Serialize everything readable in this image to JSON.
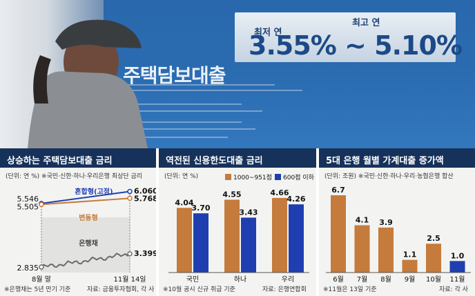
{
  "photo": {
    "rate_low_label": "최저 연",
    "rate_high_label": "최고 연",
    "rate_range_text": "3.55% ~ 5.10%",
    "billboard_title": "주택담보대출"
  },
  "colors": {
    "navy": "#16325b",
    "blue": "#1f3fb0",
    "orange": "#c57b3b",
    "gray": "#6b6b6b",
    "panel_bg": "#f3f3f1"
  },
  "panels": {
    "p1": {
      "title": "상승하는 주택담보대출 금리",
      "unit": "(단위: 연 %)  ※국민·신한·하나·우리은행 최상단 금리",
      "footnote": "※은행채는 5년 만기 기준",
      "source": "자료: 금융투자협회, 각 사"
    },
    "p2": {
      "title": "역전된 신용한도대출 금리",
      "unit": "(단위: 연 %)",
      "footnote": "※10월 공시 신규 취급 기준",
      "source": "자료: 은행연합회"
    },
    "p3": {
      "title": "5대 은행 월별 가계대출 증가액",
      "unit": "(단위: 조원)  ※국민·신한·하나·우리·농협은행 합산",
      "footnote": "※11월은 13일 기준",
      "source": "자료: 각 사"
    }
  },
  "chart_data": [
    {
      "type": "line",
      "title": "상승하는 주택담보대출 금리",
      "x": [
        "8월 말",
        "11월 14일"
      ],
      "series": [
        {
          "name": "혼합형(고정)",
          "values": [
            5.546,
            6.06
          ]
        },
        {
          "name": "변동형",
          "values": [
            5.505,
            5.768
          ]
        },
        {
          "name": "은행채",
          "values": [
            2.835,
            3.399
          ]
        }
      ],
      "value_labels": {
        "혼합형(고정)": [
          "5.546",
          "6.060"
        ],
        "변동형": [
          "5.505",
          "5.768"
        ],
        "은행채": [
          "2.835",
          "3.399"
        ]
      },
      "x_labels": [
        "8월 말",
        "11월 14일"
      ]
    },
    {
      "type": "bar",
      "title": "역전된 신용한도대출 금리",
      "categories": [
        "국민",
        "하나",
        "우리"
      ],
      "series": [
        {
          "name": "1000~951점",
          "values": [
            4.04,
            4.55,
            4.66
          ],
          "labels": [
            "4.04",
            "4.55",
            "4.66"
          ]
        },
        {
          "name": "600점 이하",
          "values": [
            3.7,
            3.43,
            4.26
          ],
          "labels": [
            "3.70",
            "3.43",
            "4.26"
          ]
        }
      ],
      "legend": "top-right"
    },
    {
      "type": "bar",
      "title": "5대 은행 월별 가계대출 증가액",
      "categories": [
        "6월",
        "7월",
        "8월",
        "9월",
        "10월",
        "11월"
      ],
      "values": [
        6.7,
        4.1,
        3.9,
        1.1,
        2.5,
        1.0
      ],
      "labels": [
        "6.7",
        "4.1",
        "3.9",
        "1.1",
        "2.5",
        "1.0"
      ],
      "highlight_last": true
    }
  ]
}
